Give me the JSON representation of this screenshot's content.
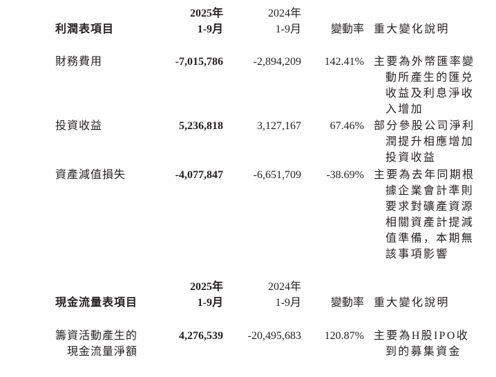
{
  "income_table": {
    "headers": {
      "item": "利潤表項目",
      "col2025_year": "2025年",
      "col2025_period": "1-9月",
      "col2024_year": "2024年",
      "col2024_period": "1-9月",
      "change": "變動率",
      "explanation": "重大變化說明"
    },
    "rows": [
      {
        "item": [
          "財務費用"
        ],
        "v2025": "-7,015,786",
        "v2024": "-2,894,209",
        "change": "142.41%",
        "explanation": [
          "主要為外幣匯率變",
          "動所產生的匯兑",
          "收益及利息淨收",
          "入增加"
        ]
      },
      {
        "item": [
          "投資收益"
        ],
        "v2025": "5,236,818",
        "v2024": "3,127,167",
        "change": "67.46%",
        "explanation": [
          "部分參股公司淨利",
          "潤提升相應增加",
          "投資收益"
        ]
      },
      {
        "item": [
          "資產減值損失"
        ],
        "v2025": "-4,077,847",
        "v2024": "-6,651,709",
        "change": "-38.69%",
        "explanation": [
          "主要為去年同期根",
          "據企業會計準則",
          "要求對礦產資源",
          "相關資產計提減",
          "值準備，本期無",
          "該事項影響"
        ]
      }
    ]
  },
  "cashflow_table": {
    "headers": {
      "item": "現金流量表項目",
      "col2025_year": "2025年",
      "col2025_period": "1-9月",
      "col2024_year": "2024年",
      "col2024_period": "1-9月",
      "change": "變動率",
      "explanation": "重大變化說明"
    },
    "rows": [
      {
        "item": [
          "籌資活動產生的",
          "現金流量淨額"
        ],
        "v2025": "4,276,539",
        "v2024": "-20,495,683",
        "change": "120.87%",
        "explanation": [
          "主要為H股IPO收",
          "到的募集資金"
        ]
      }
    ]
  }
}
